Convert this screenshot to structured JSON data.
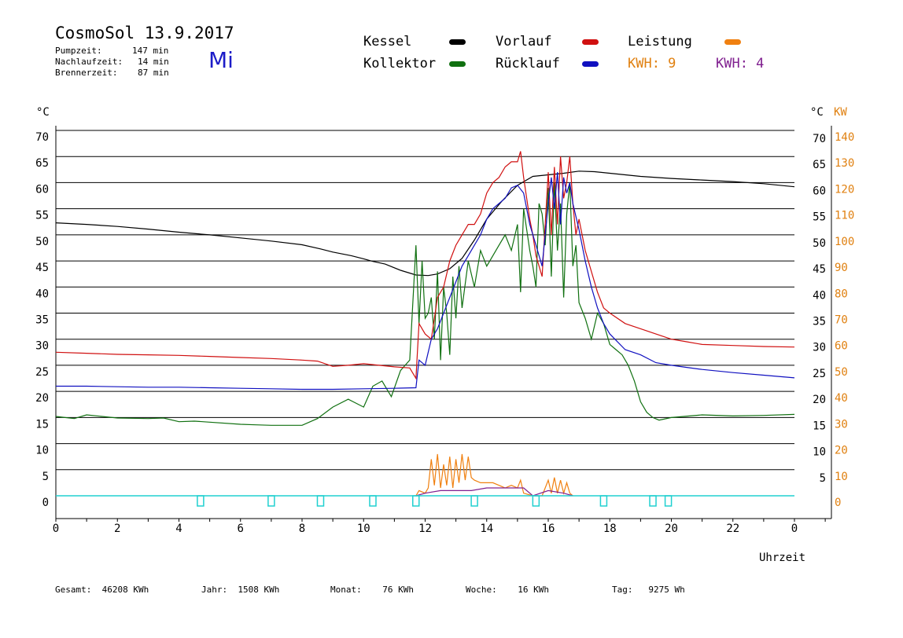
{
  "header": {
    "title": "CosmoSol 13.9.2017",
    "day": "Mi",
    "info": [
      {
        "label": "Pumpzeit:",
        "value": "147 min"
      },
      {
        "label": "Nachlaufzeit:",
        "value": "14 min"
      },
      {
        "label": "Brennerzeit:",
        "value": "87 min"
      }
    ]
  },
  "legend": {
    "kessel": "Kessel",
    "kollektor": "Kollektor",
    "vorlauf": "Vorlauf",
    "ruecklauf": "Rücklauf",
    "leistung": "Leistung",
    "kwh_a": "KWH: 9",
    "kwh_b": "KWH: 4"
  },
  "colors": {
    "kessel": "#000000",
    "kollektor": "#107010",
    "vorlauf": "#d01010",
    "ruecklauf": "#1010c0",
    "leistung": "#f08010",
    "kwh_b": "#802090",
    "pump": "#20d0d0",
    "axis_right_kw": "#e08010"
  },
  "footer": {
    "gesamt": "Gesamt:  46208 KWh",
    "jahr": "Jahr:  1508 KWh",
    "monat": "Monat:    76 KWh",
    "woche": "Woche:    16 KWh",
    "tag": "Tag:   9275 Wh"
  },
  "chart_data": {
    "type": "line",
    "xlabel": "Uhrzeit",
    "ylabel_left": "°C",
    "ylabel_right": "°C",
    "ylabel_right2": "KW",
    "xlim": [
      0,
      24
    ],
    "ylim": [
      0,
      70
    ],
    "x_ticks": [
      "0",
      "2",
      "4",
      "6",
      "8",
      "10",
      "12",
      "14",
      "16",
      "18",
      "20",
      "22",
      "0"
    ],
    "x_tick_values": [
      0,
      2,
      4,
      6,
      8,
      10,
      12,
      14,
      16,
      18,
      20,
      22,
      24
    ],
    "y_ticks": [
      0,
      5,
      10,
      15,
      20,
      25,
      30,
      35,
      40,
      45,
      50,
      55,
      60,
      65,
      70
    ],
    "y_ticks_right": [
      5,
      10,
      15,
      20,
      25,
      30,
      35,
      40,
      45,
      50,
      55,
      60,
      65,
      70
    ],
    "kw_ticks": [
      0,
      10,
      20,
      30,
      40,
      50,
      60,
      70,
      80,
      90,
      100,
      110,
      120,
      130,
      140
    ],
    "grid": true,
    "series": [
      {
        "name": "Kessel",
        "key": "kessel",
        "x": [
          0,
          1,
          2,
          3,
          4,
          5,
          6,
          7,
          8,
          8.6,
          9,
          9.6,
          10,
          10.3,
          10.7,
          11.2,
          11.7,
          12.1,
          12.4,
          12.8,
          13.2,
          13.6,
          14,
          14.5,
          15,
          15.5,
          16,
          16.5,
          17,
          17.5,
          18,
          19,
          20,
          21,
          22,
          23,
          24
        ],
        "y": [
          52.3,
          52,
          51.6,
          51.1,
          50.5,
          50,
          49.4,
          48.8,
          48.1,
          47.3,
          46.7,
          46,
          45.4,
          44.9,
          44.4,
          43.2,
          42.3,
          42.2,
          42.5,
          43.5,
          45.5,
          49,
          53,
          56.5,
          59.5,
          61.2,
          61.5,
          61.8,
          62.2,
          62.1,
          61.8,
          61.2,
          60.8,
          60.5,
          60.2,
          59.8,
          59.2
        ]
      },
      {
        "name": "Kollektor",
        "key": "kollektor",
        "x": [
          0,
          0.3,
          0.6,
          1,
          2,
          3,
          3.5,
          4,
          4.5,
          5,
          6,
          6.5,
          7,
          8,
          8.5,
          9,
          9.5,
          10,
          10.3,
          10.6,
          10.9,
          11.2,
          11.5,
          11.7,
          11.8,
          11.9,
          12,
          12.1,
          12.2,
          12.3,
          12.4,
          12.5,
          12.6,
          12.7,
          12.8,
          12.9,
          13,
          13.1,
          13.2,
          13.4,
          13.6,
          13.8,
          14,
          14.2,
          14.4,
          14.6,
          14.8,
          15,
          15.1,
          15.2,
          15.3,
          15.4,
          15.5,
          15.6,
          15.7,
          15.8,
          15.9,
          16,
          16.1,
          16.2,
          16.3,
          16.4,
          16.5,
          16.6,
          16.7,
          16.8,
          16.9,
          17,
          17.2,
          17.4,
          17.6,
          17.8,
          18,
          18.2,
          18.4,
          18.6,
          18.8,
          19,
          19.2,
          19.4,
          19.6,
          20,
          21,
          22,
          23,
          24
        ],
        "y": [
          15.2,
          15,
          14.8,
          15.5,
          14.9,
          14.8,
          14.9,
          14.2,
          14.3,
          14.1,
          13.7,
          13.6,
          13.5,
          13.5,
          14.8,
          17,
          18.5,
          17,
          21,
          22,
          19,
          24,
          26,
          48,
          33,
          45,
          34,
          35,
          38,
          30,
          43,
          26,
          40,
          35,
          27,
          42,
          34,
          44,
          36,
          45,
          40,
          47,
          44,
          46,
          48,
          50,
          47,
          52,
          39,
          55,
          51,
          47,
          44,
          40,
          56,
          54,
          48,
          59,
          42,
          60,
          47,
          56,
          38,
          54,
          60,
          44,
          48,
          37,
          34,
          30,
          35,
          33,
          29,
          28,
          27,
          25,
          22,
          18,
          16,
          15,
          14.5,
          15,
          15.5,
          15.3,
          15.4,
          15.6
        ]
      },
      {
        "name": "Vorlauf",
        "key": "vorlauf",
        "x": [
          0,
          1,
          2,
          3,
          4,
          5,
          6,
          7,
          8,
          8.5,
          9,
          9.5,
          10,
          10.5,
          11,
          11.5,
          11.7,
          11.8,
          12,
          12.2,
          12.4,
          12.6,
          12.8,
          13,
          13.2,
          13.4,
          13.6,
          13.8,
          14,
          14.2,
          14.4,
          14.6,
          14.8,
          15,
          15.1,
          15.2,
          15.3,
          15.4,
          15.5,
          15.6,
          15.7,
          15.8,
          16,
          16.1,
          16.2,
          16.3,
          16.4,
          16.5,
          16.6,
          16.7,
          16.8,
          16.9,
          17,
          17.2,
          17.4,
          17.6,
          17.8,
          18,
          18.5,
          19,
          19.5,
          20,
          20.5,
          21,
          22,
          23,
          24
        ],
        "y": [
          27.5,
          27.3,
          27.1,
          27,
          26.9,
          26.7,
          26.5,
          26.3,
          26,
          25.8,
          24.8,
          25,
          25.3,
          25,
          24.7,
          24.5,
          22.5,
          33,
          31,
          30,
          38,
          40,
          45,
          48,
          50,
          52,
          52,
          54,
          58,
          60,
          61,
          63,
          64,
          64,
          66,
          61,
          57,
          53,
          50,
          46,
          44,
          42,
          62,
          50,
          63,
          52,
          65,
          57,
          60,
          65,
          56,
          50,
          53,
          47,
          43,
          39,
          36,
          35,
          33,
          32,
          31,
          30,
          29.5,
          29,
          28.8,
          28.6,
          28.5
        ]
      },
      {
        "name": "Rücklauf",
        "key": "ruecklauf",
        "x": [
          0,
          1,
          2,
          3,
          4,
          5,
          6,
          7,
          8,
          9,
          10,
          11,
          11.7,
          11.8,
          12,
          12.2,
          12.4,
          12.6,
          12.8,
          13,
          13.2,
          13.4,
          13.6,
          13.8,
          14,
          14.2,
          14.4,
          14.6,
          14.8,
          15,
          15.2,
          15.4,
          15.6,
          15.8,
          16,
          16.1,
          16.2,
          16.3,
          16.4,
          16.5,
          16.6,
          16.7,
          16.8,
          17,
          17.2,
          17.4,
          17.6,
          17.8,
          18,
          18.5,
          19,
          19.5,
          20,
          20.5,
          21,
          22,
          23,
          24
        ],
        "y": [
          21,
          21,
          20.9,
          20.8,
          20.8,
          20.7,
          20.6,
          20.5,
          20.4,
          20.4,
          20.5,
          20.6,
          20.7,
          26,
          25,
          30,
          32,
          35,
          38,
          41,
          44,
          46,
          48,
          50,
          53,
          55,
          56,
          57,
          59,
          59.5,
          58,
          52,
          48,
          44,
          56,
          61,
          55,
          62,
          52,
          61,
          58,
          60,
          56,
          51,
          45,
          40,
          36,
          33,
          31,
          28,
          27,
          25.5,
          25,
          24.6,
          24.2,
          23.6,
          23.1,
          22.6
        ]
      }
    ],
    "leistung": {
      "name": "Leistung",
      "key": "leistung",
      "x": [
        11.7,
        11.8,
        12,
        12.1,
        12.2,
        12.3,
        12.4,
        12.5,
        12.6,
        12.7,
        12.8,
        12.9,
        13,
        13.1,
        13.2,
        13.3,
        13.4,
        13.5,
        13.6,
        13.8,
        14,
        14.2,
        14.4,
        14.6,
        14.8,
        15,
        15.1,
        15.2,
        15.5,
        15.8,
        16,
        16.1,
        16.2,
        16.3,
        16.4,
        16.5,
        16.6,
        16.7,
        16.8
      ],
      "kw": [
        0,
        2,
        1,
        3,
        14,
        4,
        16,
        3,
        12,
        4,
        15,
        3,
        14,
        5,
        16,
        6,
        15,
        7,
        6,
        5,
        5,
        5,
        4,
        3,
        4,
        3,
        6,
        1,
        0,
        0,
        6,
        1,
        7,
        1,
        6,
        1,
        5,
        1,
        0
      ]
    },
    "kwh_b_curve": {
      "name": "KWH: 4",
      "key": "kwh_b",
      "x": [
        11.7,
        12,
        12.5,
        13,
        13.5,
        14,
        14.5,
        15,
        15.2,
        15.5,
        16,
        16.5,
        16.8
      ],
      "kw": [
        0,
        1,
        2,
        2,
        2,
        3,
        3,
        3,
        3,
        0,
        2,
        1,
        0
      ]
    },
    "pump_pulses": [
      4.7,
      7,
      8.6,
      10.3,
      11.7,
      13.6,
      15.6,
      17.8,
      19.4,
      19.9
    ]
  }
}
